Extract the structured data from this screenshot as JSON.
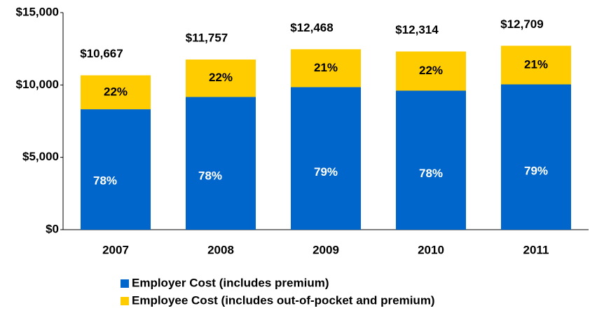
{
  "chart_data": {
    "type": "stacked_bar",
    "categories": [
      "2007",
      "2008",
      "2009",
      "2010",
      "2011"
    ],
    "series": [
      {
        "name": "Employer Cost (includes premium)",
        "color": "#0066cc",
        "values": [
          8320,
          9170,
          9850,
          9605,
          10040
        ],
        "shares": [
          {
            "value": 78,
            "label": "78%"
          },
          {
            "value": 78,
            "label": "78%"
          },
          {
            "value": 79,
            "label": "79%"
          },
          {
            "value": 78,
            "label": "78%"
          },
          {
            "value": 79,
            "label": "79%"
          }
        ]
      },
      {
        "name": "Employee Cost (includes out-of-pocket  and premium)",
        "color": "#ffcc00",
        "values": [
          2347,
          2587,
          2618,
          2709,
          2669
        ],
        "shares": [
          {
            "value": 22,
            "label": "22%"
          },
          {
            "value": 22,
            "label": "22%"
          },
          {
            "value": 21,
            "label": "21%"
          },
          {
            "value": 22,
            "label": "22%"
          },
          {
            "value": 21,
            "label": "21%"
          }
        ]
      }
    ],
    "totals": [
      {
        "value": 10667,
        "label": "$10,667"
      },
      {
        "value": 11757,
        "label": "$11,757"
      },
      {
        "value": 12468,
        "label": "$12,468"
      },
      {
        "value": 12314,
        "label": "$12,314"
      },
      {
        "value": 12709,
        "label": "$12,709"
      }
    ],
    "ylim": [
      0,
      15000
    ],
    "yticks": [
      {
        "value": 0,
        "label": "$0"
      },
      {
        "value": 5000,
        "label": "$5,000"
      },
      {
        "value": 10000,
        "label": "$10,000"
      },
      {
        "value": 15000,
        "label": "$15,000"
      }
    ],
    "legend": "bottom"
  }
}
